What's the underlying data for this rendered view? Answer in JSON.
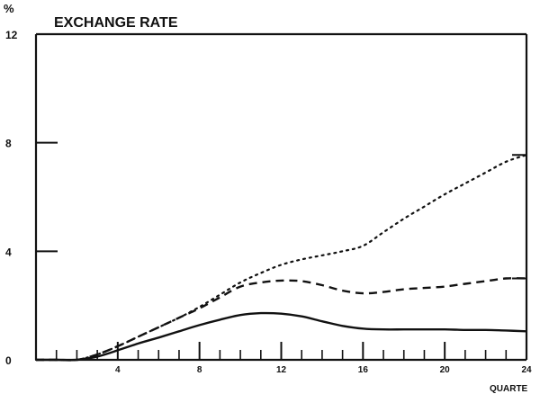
{
  "chart_data": {
    "type": "line",
    "title": "EXCHANGE RATE",
    "ylabel": "%",
    "xlabel": "QUARTE",
    "xlim": [
      0,
      24
    ],
    "ylim": [
      0,
      12
    ],
    "x_ticks": [
      4,
      8,
      12,
      16,
      20,
      24
    ],
    "x_tick_labels": [
      "4",
      "8",
      "12",
      "16",
      "20",
      "24"
    ],
    "y_ticks": [
      0,
      4,
      8,
      12
    ],
    "y_tick_labels": [
      "0",
      "4",
      "8",
      "12"
    ],
    "grid": false,
    "legend": "none",
    "series": [
      {
        "style": "solid",
        "x": [
          0,
          1,
          2,
          3,
          4,
          5,
          6,
          7,
          8,
          9,
          10,
          11,
          12,
          13,
          14,
          15,
          16,
          17,
          18,
          19,
          20,
          21,
          22,
          23,
          24
        ],
        "values": [
          0,
          0,
          0,
          0.12,
          0.35,
          0.6,
          0.82,
          1.05,
          1.28,
          1.48,
          1.65,
          1.72,
          1.7,
          1.6,
          1.42,
          1.25,
          1.15,
          1.12,
          1.12,
          1.12,
          1.12,
          1.1,
          1.1,
          1.08,
          1.05
        ]
      },
      {
        "style": "dashed",
        "x": [
          0,
          1,
          2,
          3,
          4,
          5,
          6,
          7,
          8,
          9,
          10,
          11,
          12,
          13,
          14,
          15,
          16,
          17,
          18,
          19,
          20,
          21,
          22,
          23,
          24
        ],
        "values": [
          0,
          0,
          0,
          0.2,
          0.5,
          0.85,
          1.2,
          1.55,
          1.9,
          2.3,
          2.7,
          2.85,
          2.92,
          2.9,
          2.75,
          2.55,
          2.45,
          2.5,
          2.6,
          2.65,
          2.7,
          2.8,
          2.9,
          3.0,
          3.0
        ]
      },
      {
        "style": "dotted",
        "x": [
          0,
          1,
          2,
          3,
          4,
          5,
          6,
          7,
          8,
          9,
          10,
          11,
          12,
          13,
          14,
          15,
          16,
          17,
          18,
          19,
          20,
          21,
          22,
          23,
          24
        ],
        "values": [
          0,
          0,
          0,
          0.2,
          0.5,
          0.85,
          1.2,
          1.55,
          1.95,
          2.4,
          2.85,
          3.2,
          3.5,
          3.7,
          3.85,
          4.0,
          4.2,
          4.7,
          5.2,
          5.65,
          6.1,
          6.5,
          6.9,
          7.3,
          7.55
        ]
      }
    ]
  }
}
